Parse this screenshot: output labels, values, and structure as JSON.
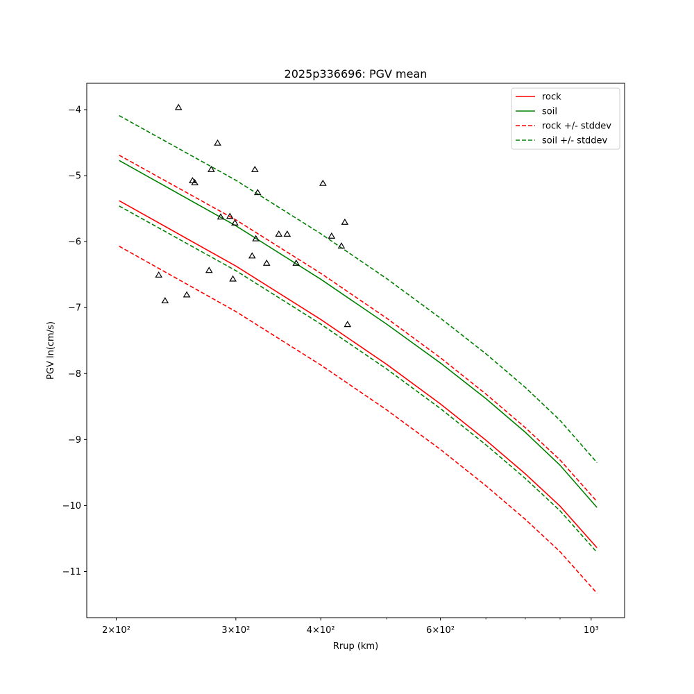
{
  "chart_data": {
    "type": "line",
    "title": "2025p336696: PGV mean",
    "xlabel": "Rrup (km)",
    "ylabel": "PGV ln(cm/s)",
    "xscale": "log",
    "xlim": [
      181,
      1120
    ],
    "ylim": [
      -11.7,
      -3.6
    ],
    "x_ticks": [
      {
        "value": 200,
        "label": "2×10²"
      },
      {
        "value": 300,
        "label": "3×10²"
      },
      {
        "value": 400,
        "label": "4×10²"
      },
      {
        "value": 600,
        "label": "6×10²"
      },
      {
        "value": 1000,
        "label": "10³"
      }
    ],
    "x_minor_ticks": [
      500,
      700,
      800,
      900
    ],
    "y_ticks": [
      {
        "value": -4,
        "label": "−4"
      },
      {
        "value": -5,
        "label": "−5"
      },
      {
        "value": -6,
        "label": "−6"
      },
      {
        "value": -7,
        "label": "−7"
      },
      {
        "value": -8,
        "label": "−8"
      },
      {
        "value": -9,
        "label": "−9"
      },
      {
        "value": -10,
        "label": "−10"
      },
      {
        "value": -11,
        "label": "−11"
      }
    ],
    "grid": false,
    "legend_position": "top-right",
    "series": [
      {
        "name": "rock",
        "color": "#ff0000",
        "dash": "solid",
        "points": [
          [
            202,
            -5.38
          ],
          [
            300,
            -6.37
          ],
          [
            400,
            -7.18
          ],
          [
            500,
            -7.86
          ],
          [
            600,
            -8.46
          ],
          [
            700,
            -9.01
          ],
          [
            800,
            -9.52
          ],
          [
            900,
            -10.01
          ],
          [
            1020,
            -10.64
          ]
        ]
      },
      {
        "name": "soil",
        "color": "#008000",
        "dash": "solid",
        "points": [
          [
            202,
            -4.77
          ],
          [
            300,
            -5.76
          ],
          [
            400,
            -6.57
          ],
          [
            500,
            -7.25
          ],
          [
            600,
            -7.84
          ],
          [
            700,
            -8.38
          ],
          [
            800,
            -8.89
          ],
          [
            900,
            -9.39
          ],
          [
            1020,
            -10.03
          ]
        ]
      },
      {
        "name": "rock +/- stddev",
        "color": "#ff0000",
        "dash": "dashed",
        "points": [
          [
            202,
            -4.69
          ],
          [
            300,
            -5.67
          ],
          [
            400,
            -6.48
          ],
          [
            500,
            -7.16
          ],
          [
            600,
            -7.76
          ],
          [
            700,
            -8.31
          ],
          [
            800,
            -8.82
          ],
          [
            900,
            -9.31
          ],
          [
            1020,
            -9.94
          ]
        ]
      },
      {
        "name": "",
        "color": "#ff0000",
        "dash": "dashed",
        "points": [
          [
            202,
            -6.07
          ],
          [
            300,
            -7.06
          ],
          [
            400,
            -7.87
          ],
          [
            500,
            -8.55
          ],
          [
            600,
            -9.15
          ],
          [
            700,
            -9.7
          ],
          [
            800,
            -10.21
          ],
          [
            900,
            -10.7
          ],
          [
            1020,
            -11.33
          ]
        ]
      },
      {
        "name": "soil +/- stddev",
        "color": "#008000",
        "dash": "dashed",
        "points": [
          [
            202,
            -4.09
          ],
          [
            300,
            -5.07
          ],
          [
            400,
            -5.88
          ],
          [
            500,
            -6.56
          ],
          [
            600,
            -7.16
          ],
          [
            700,
            -7.7
          ],
          [
            800,
            -8.21
          ],
          [
            900,
            -8.71
          ],
          [
            1020,
            -9.35
          ]
        ]
      },
      {
        "name": "",
        "color": "#008000",
        "dash": "dashed",
        "points": [
          [
            202,
            -5.46
          ],
          [
            300,
            -6.44
          ],
          [
            400,
            -7.25
          ],
          [
            500,
            -7.93
          ],
          [
            600,
            -8.53
          ],
          [
            700,
            -9.08
          ],
          [
            800,
            -9.59
          ],
          [
            900,
            -10.08
          ],
          [
            1020,
            -10.71
          ]
        ]
      }
    ],
    "observations": {
      "marker": "triangle-open",
      "color": "#000000",
      "points": [
        [
          231,
          -6.51
        ],
        [
          236,
          -6.9
        ],
        [
          247,
          -3.97
        ],
        [
          254,
          -6.81
        ],
        [
          259,
          -5.08
        ],
        [
          261,
          -5.11
        ],
        [
          274,
          -6.44
        ],
        [
          276,
          -4.91
        ],
        [
          282,
          -4.51
        ],
        [
          285,
          -5.63
        ],
        [
          294,
          -5.62
        ],
        [
          297,
          -6.57
        ],
        [
          299,
          -5.72
        ],
        [
          317,
          -6.22
        ],
        [
          320,
          -4.91
        ],
        [
          321,
          -5.96
        ],
        [
          323,
          -5.26
        ],
        [
          333,
          -6.33
        ],
        [
          347,
          -5.89
        ],
        [
          357,
          -5.89
        ],
        [
          368,
          -6.33
        ],
        [
          403,
          -5.12
        ],
        [
          415,
          -5.92
        ],
        [
          429,
          -6.07
        ],
        [
          434,
          -5.71
        ],
        [
          438,
          -7.26
        ]
      ]
    }
  }
}
